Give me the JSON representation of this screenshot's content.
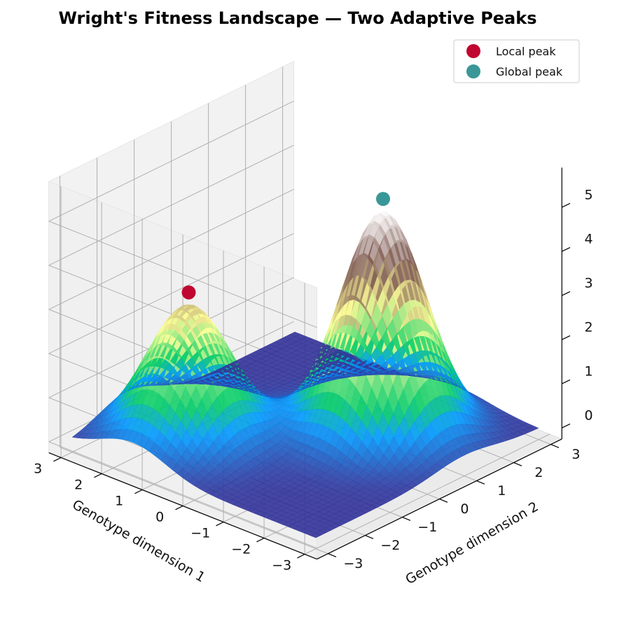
{
  "chart_data": {
    "type": "surface3d",
    "title": "Wright's Fitness Landscape — Two Adaptive Peaks",
    "xlabel": "Genotype dimension 1",
    "ylabel": "Genotype dimension 2",
    "zlabel": "",
    "xlim": [
      -3,
      3
    ],
    "ylim": [
      -3,
      3
    ],
    "zlim": [
      0,
      5
    ],
    "x_ticks": [
      "−3",
      "−2",
      "−1",
      "0",
      "1",
      "2",
      "3"
    ],
    "y_ticks": [
      "−3",
      "−2",
      "−1",
      "0",
      "1",
      "2",
      "3"
    ],
    "z_ticks": [
      "0",
      "1",
      "2",
      "3",
      "4",
      "5"
    ],
    "peaks": [
      {
        "name": "Local peak",
        "x": 1.5,
        "y": -1.5,
        "z": 3.0,
        "width": 0.8,
        "color": "#c0072f"
      },
      {
        "name": "Global peak",
        "x": -1.0,
        "y": 1.0,
        "z": 5.0,
        "width": 0.8,
        "color": "#3a9797"
      }
    ],
    "colormap": "terrain",
    "legend_position": "top-right",
    "grid": true
  }
}
